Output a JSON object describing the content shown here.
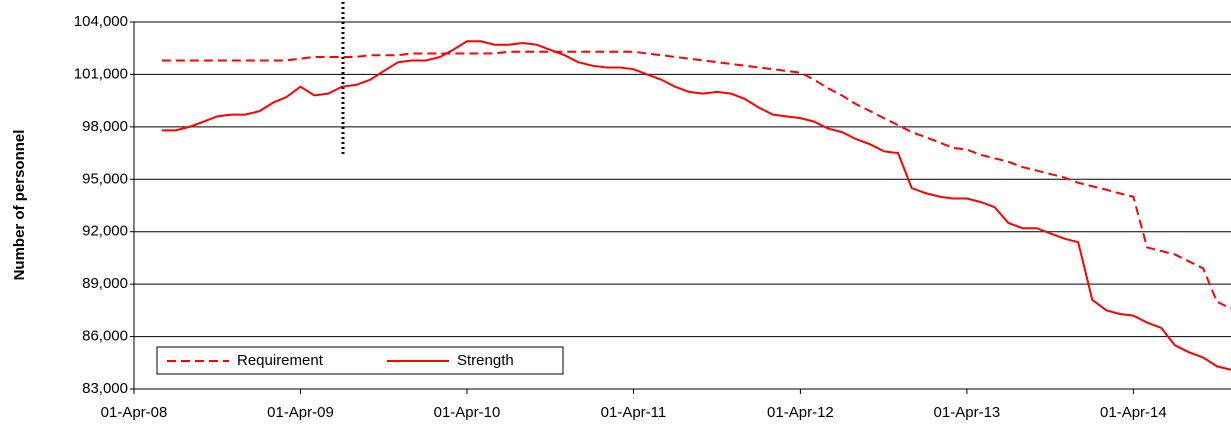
{
  "chart_data": {
    "type": "line",
    "y_label": "Number of personnel",
    "x": [
      "2008-06-01",
      "2008-07-01",
      "2008-08-01",
      "2008-09-01",
      "2008-10-01",
      "2008-11-01",
      "2008-12-01",
      "2009-01-01",
      "2009-02-01",
      "2009-03-01",
      "2009-04-01",
      "2009-05-01",
      "2009-06-01",
      "2009-07-01",
      "2009-08-01",
      "2009-09-01",
      "2009-10-01",
      "2009-11-01",
      "2009-12-01",
      "2010-01-01",
      "2010-02-01",
      "2010-03-01",
      "2010-04-01",
      "2010-05-01",
      "2010-06-01",
      "2010-07-01",
      "2010-08-01",
      "2010-09-01",
      "2010-10-01",
      "2010-11-01",
      "2010-12-01",
      "2011-01-01",
      "2011-02-01",
      "2011-03-01",
      "2011-04-01",
      "2011-05-01",
      "2011-06-01",
      "2011-07-01",
      "2011-08-01",
      "2011-09-01",
      "2011-10-01",
      "2011-11-01",
      "2011-12-01",
      "2012-01-01",
      "2012-02-01",
      "2012-03-01",
      "2012-04-01",
      "2012-05-01",
      "2012-06-01",
      "2012-07-01",
      "2012-08-01",
      "2012-09-01",
      "2012-10-01",
      "2012-11-01",
      "2012-12-01",
      "2013-01-01",
      "2013-02-01",
      "2013-03-01",
      "2013-04-01",
      "2013-05-01",
      "2013-06-01",
      "2013-07-01",
      "2013-08-01",
      "2013-09-01",
      "2013-10-01",
      "2013-11-01",
      "2013-12-01",
      "2014-01-01",
      "2014-02-01",
      "2014-03-01",
      "2014-04-01",
      "2014-05-01",
      "2014-06-01",
      "2014-07-01",
      "2014-08-01",
      "2014-09-01",
      "2014-10-01",
      "2014-11-01"
    ],
    "series": [
      {
        "name": "Requirement",
        "color": "#ff0000",
        "dash": true,
        "values": [
          101800,
          101800,
          101800,
          101800,
          101800,
          101800,
          101800,
          101800,
          101800,
          101800,
          101900,
          102000,
          102000,
          102000,
          102000,
          102100,
          102100,
          102100,
          102200,
          102200,
          102200,
          102200,
          102200,
          102200,
          102200,
          102300,
          102300,
          102300,
          102300,
          102300,
          102300,
          102300,
          102300,
          102300,
          102300,
          102200,
          102100,
          102000,
          101900,
          101800,
          101700,
          101600,
          101500,
          101400,
          101300,
          101200,
          101100,
          100700,
          100200,
          99800,
          99300,
          98900,
          98500,
          98100,
          97700,
          97400,
          97100,
          96800,
          96700,
          96400,
          96200,
          96000,
          95700,
          95500,
          95300,
          95100,
          94800,
          94600,
          94400,
          94200,
          94000,
          91100,
          90900,
          90700,
          90300,
          89900,
          88000,
          87600
        ]
      },
      {
        "name": "Strength",
        "color": "#ff0000",
        "dash": false,
        "values": [
          97800,
          97800,
          98000,
          98300,
          98600,
          98700,
          98700,
          98900,
          99400,
          99700,
          100300,
          99800,
          99900,
          100300,
          100400,
          100700,
          101200,
          101700,
          101800,
          101800,
          102000,
          102400,
          102900,
          102900,
          102700,
          102700,
          102800,
          102700,
          102400,
          102100,
          101700,
          101500,
          101400,
          101400,
          101300,
          101000,
          100700,
          100300,
          100000,
          99900,
          100000,
          99900,
          99600,
          99100,
          98700,
          98600,
          98500,
          98300,
          97900,
          97700,
          97300,
          97000,
          96600,
          96500,
          94500,
          94200,
          94000,
          93900,
          93900,
          93700,
          93400,
          92500,
          92200,
          92200,
          91900,
          91600,
          91400,
          88100,
          87500,
          87300,
          87200,
          86800,
          86500,
          85500,
          85100,
          84800,
          84300,
          84100
        ]
      }
    ],
    "xlim": [
      "2008-04-01",
      "2014-11-01"
    ],
    "xticks": [
      {
        "value": "2008-04-01",
        "label": "01-Apr-08"
      },
      {
        "value": "2009-04-01",
        "label": "01-Apr-09"
      },
      {
        "value": "2010-04-01",
        "label": "01-Apr-10"
      },
      {
        "value": "2011-04-01",
        "label": "01-Apr-11"
      },
      {
        "value": "2012-04-01",
        "label": "01-Apr-12"
      },
      {
        "value": "2013-04-01",
        "label": "01-Apr-13"
      },
      {
        "value": "2014-04-01",
        "label": "01-Apr-14"
      }
    ],
    "ylim": [
      83000,
      104000
    ],
    "yticks": [
      {
        "value": 83000,
        "label": "83,000"
      },
      {
        "value": 86000,
        "label": "86,000"
      },
      {
        "value": 89000,
        "label": "89,000"
      },
      {
        "value": 92000,
        "label": "92,000"
      },
      {
        "value": 95000,
        "label": "95,000"
      },
      {
        "value": 98000,
        "label": "98,000"
      },
      {
        "value": 101000,
        "label": "101,000"
      },
      {
        "value": 104000,
        "label": "104,000"
      }
    ],
    "grid": true,
    "legend": "lower left"
  }
}
